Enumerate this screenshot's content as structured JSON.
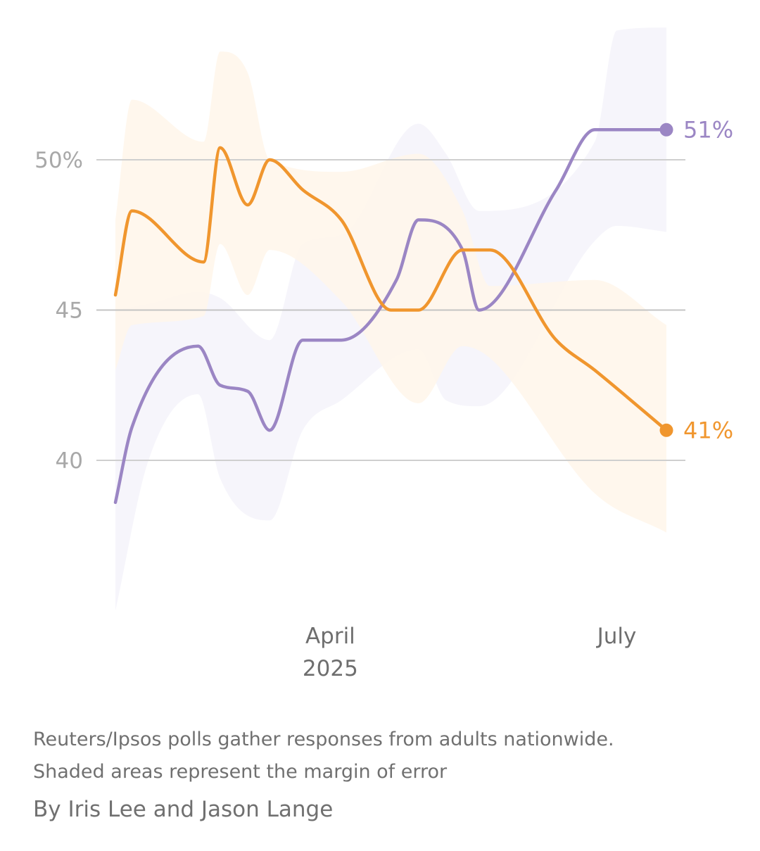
{
  "chart_data": {
    "type": "line",
    "y_ticks": [
      {
        "value": 50,
        "label": "50%"
      },
      {
        "value": 45,
        "label": "45"
      },
      {
        "value": 40,
        "label": "40"
      }
    ],
    "ylim": [
      33,
      55
    ],
    "x_ticks": [
      {
        "value": 39,
        "label": [
          "April",
          "2025"
        ]
      },
      {
        "value": 91,
        "label": [
          "July"
        ]
      }
    ],
    "xlim": [
      0,
      100
    ],
    "grid": true,
    "series": [
      {
        "color": "#9b86c4",
        "band_color": "#f5f3fa",
        "end_label": "51%",
        "points": [
          {
            "x": 0,
            "y": 38.6
          },
          {
            "x": 3,
            "y": 41.1
          },
          {
            "x": 15,
            "y": 43.8
          },
          {
            "x": 19,
            "y": 42.5
          },
          {
            "x": 24,
            "y": 42.3
          },
          {
            "x": 28,
            "y": 41.0
          },
          {
            "x": 34,
            "y": 44.0
          },
          {
            "x": 41,
            "y": 44.0
          },
          {
            "x": 51,
            "y": 46.0
          },
          {
            "x": 55,
            "y": 48.0
          },
          {
            "x": 63,
            "y": 47.0
          },
          {
            "x": 66,
            "y": 45.0
          },
          {
            "x": 80,
            "y": 49.0
          },
          {
            "x": 87,
            "y": 51.0
          },
          {
            "x": 100,
            "y": 51.0
          }
        ],
        "band_upper": [
          45.0,
          45.2,
          45.6,
          45.4,
          44.0,
          47.2,
          47.5,
          51.2,
          50.2,
          48.3,
          50.6,
          54.3,
          54.4
        ],
        "band_lower": [
          35.0,
          40.0,
          42.2,
          39.4,
          38.0,
          41.0,
          42.0,
          43.7,
          42.0,
          41.8,
          47.3,
          47.8,
          47.6
        ],
        "band_x": [
          0,
          6,
          15,
          19,
          28,
          34,
          41,
          55,
          60,
          66,
          87,
          91,
          100
        ]
      },
      {
        "color": "#f0962e",
        "band_color": "#fff6ea",
        "end_label": "41%",
        "points": [
          {
            "x": 0,
            "y": 45.5
          },
          {
            "x": 3,
            "y": 48.3
          },
          {
            "x": 16,
            "y": 46.6
          },
          {
            "x": 19,
            "y": 50.4
          },
          {
            "x": 24,
            "y": 48.5
          },
          {
            "x": 28,
            "y": 50.0
          },
          {
            "x": 34,
            "y": 49.0
          },
          {
            "x": 41,
            "y": 48.0
          },
          {
            "x": 50,
            "y": 45.0
          },
          {
            "x": 55,
            "y": 45.0
          },
          {
            "x": 63,
            "y": 47.0
          },
          {
            "x": 68,
            "y": 47.0
          },
          {
            "x": 80,
            "y": 44.0
          },
          {
            "x": 87,
            "y": 43.0
          },
          {
            "x": 100,
            "y": 41.0
          }
        ],
        "band_upper": [
          48.0,
          52.0,
          50.6,
          53.6,
          52.9,
          50.0,
          49.6,
          50.2,
          48.3,
          45.8,
          46.0,
          44.5
        ],
        "band_lower": [
          43.0,
          44.5,
          44.8,
          47.2,
          45.5,
          47.0,
          45.3,
          41.9,
          43.8,
          43.4,
          38.9,
          37.6
        ],
        "band_x": [
          0,
          3,
          16,
          19,
          24,
          28,
          41,
          55,
          63,
          68,
          87,
          100
        ]
      }
    ]
  },
  "notes": {
    "line1": "Reuters/Ipsos polls gather responses from adults nationwide.",
    "line2": "Shaded areas represent the margin of error"
  },
  "byline": "By Iris Lee and Jason Lange"
}
